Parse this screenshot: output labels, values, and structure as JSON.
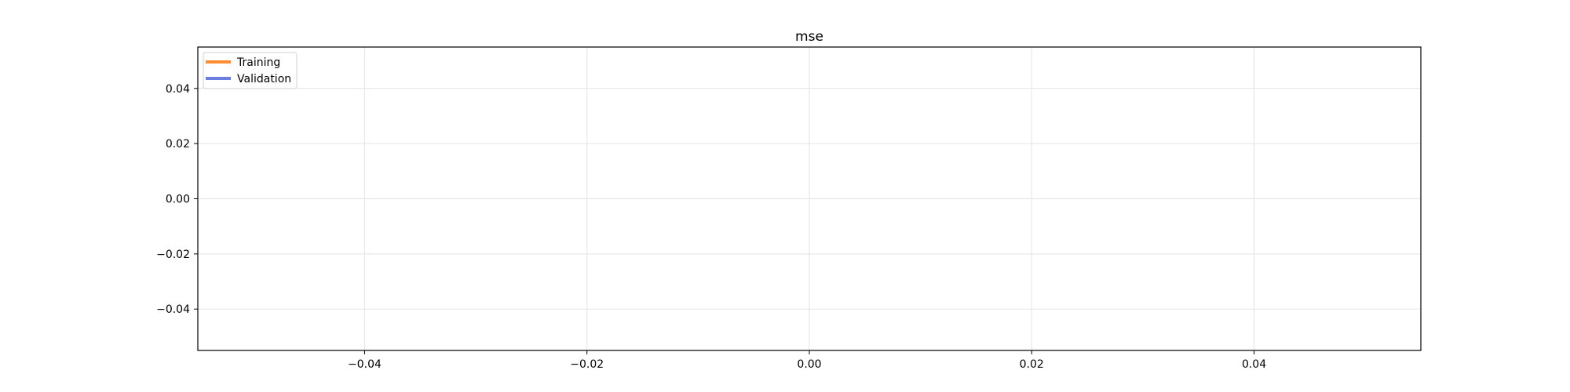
{
  "chart_data": {
    "type": "line",
    "title": "mse",
    "xlabel": "",
    "ylabel": "",
    "xlim": [
      -0.055,
      0.055
    ],
    "ylim": [
      -0.055,
      0.055
    ],
    "x_ticks": [
      -0.04,
      -0.02,
      0.0,
      0.02,
      0.04
    ],
    "x_tick_labels": [
      "−0.04",
      "−0.02",
      "0.00",
      "0.02",
      "0.04"
    ],
    "y_ticks": [
      0.04,
      0.02,
      0.0,
      -0.02,
      -0.04
    ],
    "y_tick_labels": [
      "0.04",
      "0.02",
      "0.00",
      "−0.02",
      "−0.04"
    ],
    "grid": true,
    "legend_position": "top-left",
    "series": [
      {
        "name": "Training",
        "color": "#ff8c32",
        "x": [],
        "y": []
      },
      {
        "name": "Validation",
        "color": "#6b7fe0",
        "x": [],
        "y": []
      }
    ]
  }
}
